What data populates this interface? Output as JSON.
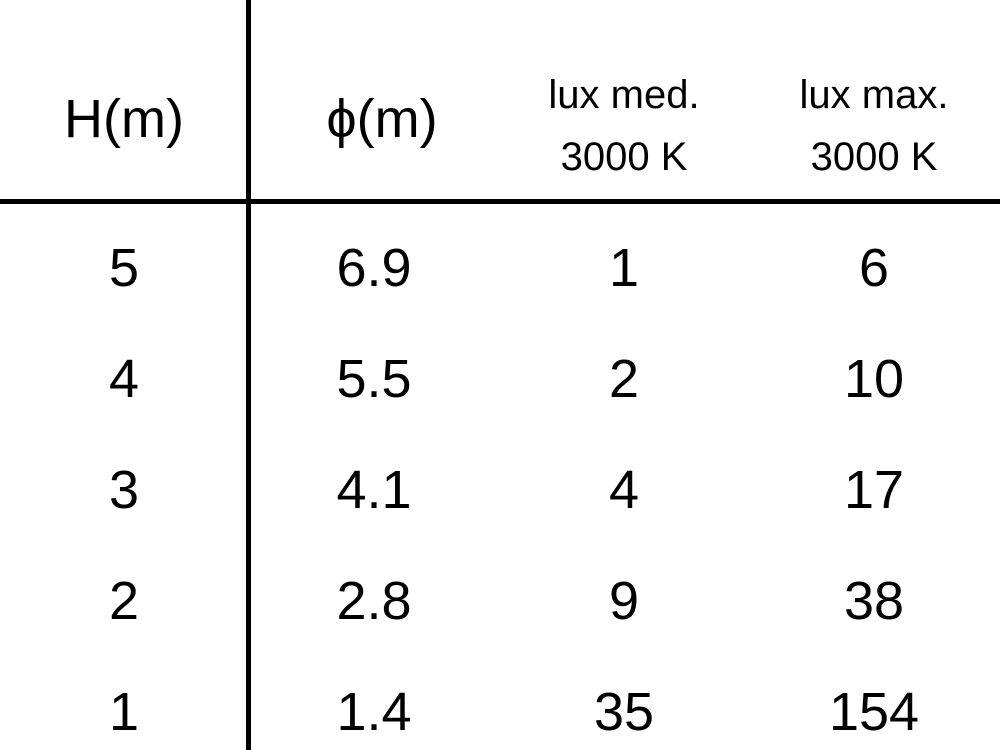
{
  "headers": [
    "H(m)",
    "ϕ(m)",
    "lux med.",
    "3000 K",
    "lux max.",
    "3000 K"
  ],
  "rows": [
    [
      "5",
      "6.9",
      "1",
      "6"
    ],
    [
      "4",
      "5.5",
      "2",
      "10"
    ],
    [
      "3",
      "4.1",
      "4",
      "17"
    ],
    [
      "2",
      "2.8",
      "9",
      "38"
    ],
    [
      "1",
      "1.4",
      "35",
      "154"
    ]
  ]
}
